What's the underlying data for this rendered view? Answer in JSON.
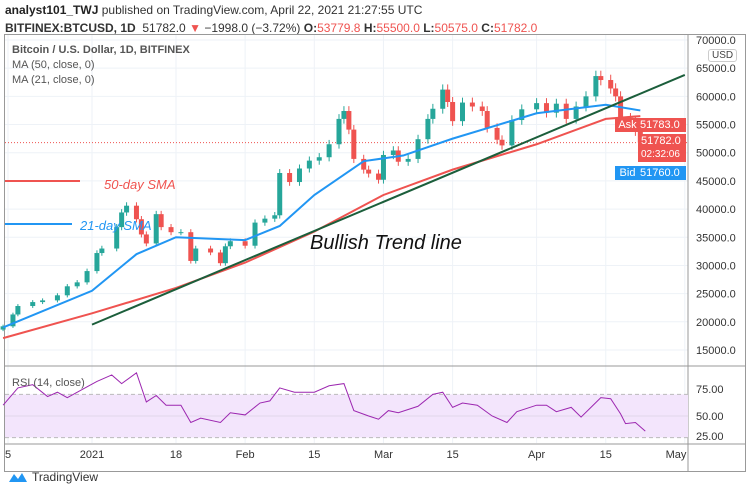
{
  "header": {
    "author": "analyst101_TWJ",
    "published": "published on TradingView.com, April 22, 2021 21:27:55 UTC",
    "symbol": "BITFINEX:BTCUSD, 1D",
    "last": "51782.0",
    "change": "−1998.0 (−3.72%)",
    "o_label": "O:",
    "o": "53779.8",
    "h_label": "H:",
    "h": "55500.0",
    "l_label": "L:",
    "l": "50575.0",
    "c_label": "C:",
    "c": "51782.0"
  },
  "legend": {
    "title": "Bitcoin / U.S. Dollar, 1D, BITFINEX",
    "ma50": "MA (50, close, 0)",
    "ma21": "MA (21, close, 0)",
    "rsi": "RSI (14, close)"
  },
  "annotations": {
    "sma50": "50-day SMA",
    "sma21": "21-day SMA",
    "trend": "Bullish Trend line"
  },
  "price_axis": {
    "currency": "USD",
    "ticks": [
      "70000.0",
      "65000.0",
      "60000.0",
      "55000.0",
      "50000.0",
      "45000.0",
      "40000.0",
      "35000.0",
      "30000.0",
      "25000.0",
      "20000.0",
      "15000.0"
    ],
    "ask_label": "Ask",
    "ask": "51783.0",
    "last": "51782.0",
    "countdown": "02:32:06",
    "bid_label": "Bid",
    "bid": "51760.0"
  },
  "rsi_axis": {
    "ticks": [
      "75.00",
      "50.00",
      "25.00"
    ]
  },
  "time_axis": {
    "ticks": [
      "5",
      "2021",
      "18",
      "Feb",
      "15",
      "Mar",
      "15",
      "Apr",
      "15",
      "May"
    ]
  },
  "footer": {
    "brand": "TradingView"
  },
  "colors": {
    "up": "#26a69a",
    "down": "#ef5350",
    "ma50": "#ef5350",
    "ma21": "#2196f3",
    "trend": "#1b5e3b",
    "rsi": "#9c27b0",
    "rsi_band": "#f3e5fc"
  },
  "chart_data": {
    "type": "candlestick",
    "title": "Bitcoin / U.S. Dollar, 1D, BITFINEX",
    "ylim": [
      13000,
      71000
    ],
    "x_range": [
      "2020-12-14",
      "2021-05-02"
    ],
    "closes": [
      [
        "2020-12-14",
        19200
      ],
      [
        "2020-12-16",
        21300
      ],
      [
        "2020-12-17",
        22800
      ],
      [
        "2020-12-20",
        23500
      ],
      [
        "2020-12-22",
        23800
      ],
      [
        "2020-12-25",
        24700
      ],
      [
        "2020-12-27",
        26300
      ],
      [
        "2020-12-29",
        27000
      ],
      [
        "2020-12-31",
        29000
      ],
      [
        "2021-01-02",
        32200
      ],
      [
        "2021-01-03",
        33000
      ],
      [
        "2021-01-06",
        36800
      ],
      [
        "2021-01-07",
        39400
      ],
      [
        "2021-01-08",
        40600
      ],
      [
        "2021-01-10",
        38200
      ],
      [
        "2021-01-11",
        35500
      ],
      [
        "2021-01-12",
        33900
      ],
      [
        "2021-01-14",
        39100
      ],
      [
        "2021-01-15",
        36800
      ],
      [
        "2021-01-17",
        35900
      ],
      [
        "2021-01-19",
        35900
      ],
      [
        "2021-01-21",
        30800
      ],
      [
        "2021-01-22",
        33000
      ],
      [
        "2021-01-25",
        32300
      ],
      [
        "2021-01-27",
        30400
      ],
      [
        "2021-01-28",
        33400
      ],
      [
        "2021-01-29",
        34300
      ],
      [
        "2021-02-01",
        33500
      ],
      [
        "2021-02-03",
        37600
      ],
      [
        "2021-02-05",
        38300
      ],
      [
        "2021-02-07",
        38900
      ],
      [
        "2021-02-08",
        46400
      ],
      [
        "2021-02-10",
        44800
      ],
      [
        "2021-02-12",
        47200
      ],
      [
        "2021-02-14",
        48600
      ],
      [
        "2021-02-16",
        49200
      ],
      [
        "2021-02-18",
        51500
      ],
      [
        "2021-02-20",
        56000
      ],
      [
        "2021-02-21",
        57400
      ],
      [
        "2021-02-22",
        54100
      ],
      [
        "2021-02-23",
        48900
      ],
      [
        "2021-02-25",
        47000
      ],
      [
        "2021-02-26",
        46300
      ],
      [
        "2021-02-28",
        45200
      ],
      [
        "2021-03-01",
        49600
      ],
      [
        "2021-03-03",
        50400
      ],
      [
        "2021-03-04",
        48400
      ],
      [
        "2021-03-06",
        48900
      ],
      [
        "2021-03-08",
        52400
      ],
      [
        "2021-03-10",
        56000
      ],
      [
        "2021-03-11",
        57800
      ],
      [
        "2021-03-13",
        61200
      ],
      [
        "2021-03-14",
        59000
      ],
      [
        "2021-03-15",
        55600
      ],
      [
        "2021-03-17",
        58900
      ],
      [
        "2021-03-19",
        58200
      ],
      [
        "2021-03-21",
        57400
      ],
      [
        "2021-03-22",
        54400
      ],
      [
        "2021-03-24",
        52300
      ],
      [
        "2021-03-25",
        51300
      ],
      [
        "2021-03-27",
        55800
      ],
      [
        "2021-03-29",
        57700
      ],
      [
        "2021-04-01",
        58800
      ],
      [
        "2021-04-03",
        57100
      ],
      [
        "2021-04-05",
        58700
      ],
      [
        "2021-04-07",
        56000
      ],
      [
        "2021-04-09",
        58200
      ],
      [
        "2021-04-11",
        60000
      ],
      [
        "2021-04-13",
        63600
      ],
      [
        "2021-04-14",
        62900
      ],
      [
        "2021-04-16",
        61400
      ],
      [
        "2021-04-17",
        60000
      ],
      [
        "2021-04-18",
        56200
      ],
      [
        "2021-04-20",
        55700
      ],
      [
        "2021-04-21",
        53800
      ],
      [
        "2021-04-22",
        51782
      ]
    ],
    "ma50": [
      [
        "2020-12-14",
        17100
      ],
      [
        "2021-01-01",
        21500
      ],
      [
        "2021-01-18",
        26000
      ],
      [
        "2021-02-01",
        30500
      ],
      [
        "2021-02-15",
        36000
      ],
      [
        "2021-03-01",
        42500
      ],
      [
        "2021-03-15",
        47000
      ],
      [
        "2021-04-01",
        51500
      ],
      [
        "2021-04-15",
        56000
      ],
      [
        "2021-04-22",
        56500
      ]
    ],
    "ma21": [
      [
        "2020-12-14",
        19000
      ],
      [
        "2021-01-01",
        25500
      ],
      [
        "2021-01-10",
        32000
      ],
      [
        "2021-01-18",
        35000
      ],
      [
        "2021-02-01",
        34500
      ],
      [
        "2021-02-08",
        37000
      ],
      [
        "2021-02-15",
        42500
      ],
      [
        "2021-02-25",
        48500
      ],
      [
        "2021-03-05",
        49500
      ],
      [
        "2021-03-15",
        52500
      ],
      [
        "2021-04-01",
        57000
      ],
      [
        "2021-04-15",
        58500
      ],
      [
        "2021-04-22",
        57500
      ]
    ],
    "trend_line": [
      [
        "2021-01-01",
        19500
      ],
      [
        "2021-05-01",
        63800
      ]
    ],
    "rsi": {
      "ylim": [
        20,
        95
      ],
      "bands": [
        30,
        70
      ],
      "values": [
        [
          "2020-12-14",
          60
        ],
        [
          "2020-12-17",
          76
        ],
        [
          "2020-12-20",
          79
        ],
        [
          "2020-12-23",
          68
        ],
        [
          "2020-12-25",
          72
        ],
        [
          "2020-12-27",
          67
        ],
        [
          "2020-12-31",
          77
        ],
        [
          "2021-01-02",
          82
        ],
        [
          "2021-01-05",
          88
        ],
        [
          "2021-01-07",
          80
        ],
        [
          "2021-01-10",
          90
        ],
        [
          "2021-01-12",
          63
        ],
        [
          "2021-01-14",
          69
        ],
        [
          "2021-01-16",
          60
        ],
        [
          "2021-01-19",
          60
        ],
        [
          "2021-01-21",
          44
        ],
        [
          "2021-01-23",
          48
        ],
        [
          "2021-01-27",
          44
        ],
        [
          "2021-01-29",
          53
        ],
        [
          "2021-02-01",
          51
        ],
        [
          "2021-02-04",
          62
        ],
        [
          "2021-02-06",
          64
        ],
        [
          "2021-02-08",
          76
        ],
        [
          "2021-02-11",
          72
        ],
        [
          "2021-02-15",
          72
        ],
        [
          "2021-02-18",
          78
        ],
        [
          "2021-02-21",
          80
        ],
        [
          "2021-02-23",
          55
        ],
        [
          "2021-02-26",
          50
        ],
        [
          "2021-02-28",
          47
        ],
        [
          "2021-03-02",
          55
        ],
        [
          "2021-03-04",
          53
        ],
        [
          "2021-03-08",
          59
        ],
        [
          "2021-03-11",
          70
        ],
        [
          "2021-03-13",
          72
        ],
        [
          "2021-03-15",
          58
        ],
        [
          "2021-03-17",
          62
        ],
        [
          "2021-03-20",
          60
        ],
        [
          "2021-03-23",
          50
        ],
        [
          "2021-03-26",
          44
        ],
        [
          "2021-03-28",
          54
        ],
        [
          "2021-04-01",
          60
        ],
        [
          "2021-04-03",
          60
        ],
        [
          "2021-04-05",
          54
        ],
        [
          "2021-04-08",
          58
        ],
        [
          "2021-04-10",
          49
        ],
        [
          "2021-04-12",
          58
        ],
        [
          "2021-04-14",
          67
        ],
        [
          "2021-04-16",
          66
        ],
        [
          "2021-04-18",
          52
        ],
        [
          "2021-04-19",
          43
        ],
        [
          "2021-04-21",
          44
        ],
        [
          "2021-04-23",
          36
        ]
      ]
    }
  }
}
